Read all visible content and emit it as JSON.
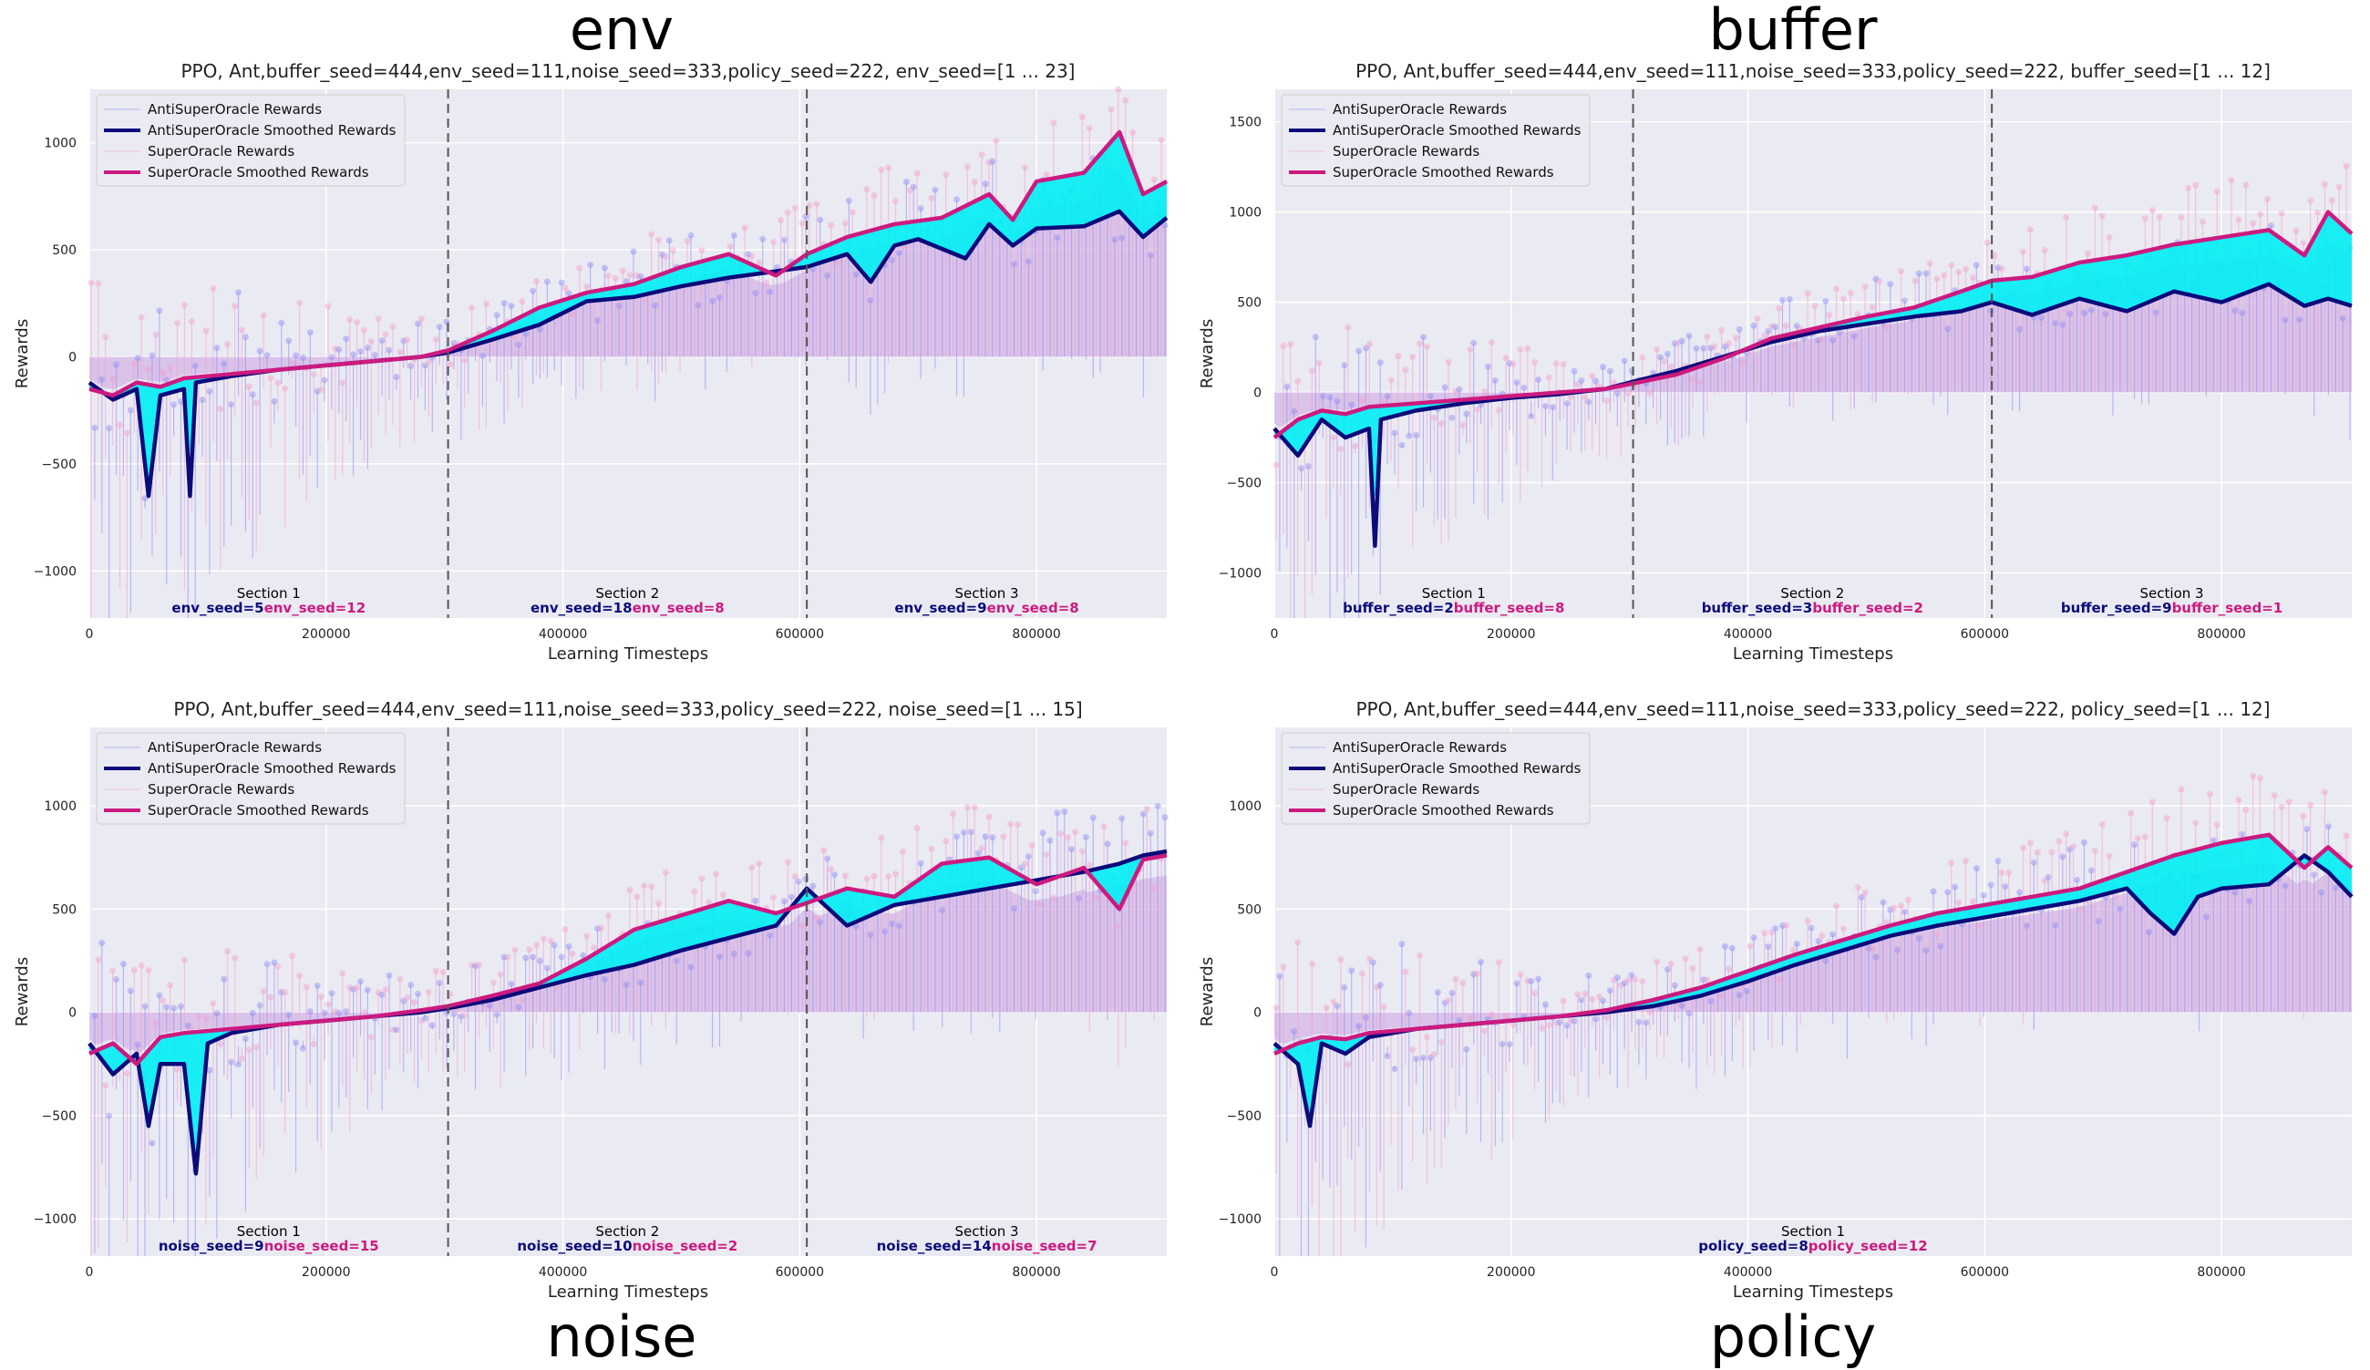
{
  "panel_labels": {
    "top_left": "env",
    "top_right": "buffer",
    "bottom_left": "noise",
    "bottom_right": "policy"
  },
  "colors": {
    "background": "#eaeaf2",
    "grid": "#ffffff",
    "anti_smoothed": "#0b0b7a",
    "super_smoothed": "#cc1a7f",
    "anti_raw": "#8c8cf5",
    "super_raw": "#f5a0c8",
    "fill_between": "#00f0f5",
    "fill_base": "#d2b2e6",
    "section_line": "#555555"
  },
  "chart_data": [
    {
      "type": "line",
      "title": "PPO, Ant,buffer_seed=444,env_seed=111,noise_seed=333,policy_seed=222, env_seed=[1 ... 23]",
      "xlabel": "Learning Timesteps",
      "ylabel": "Rewards",
      "xlim": [
        0,
        910000
      ],
      "ylim": [
        -1220,
        1250
      ],
      "xticks": [
        0,
        200000,
        400000,
        600000,
        800000
      ],
      "xtick_labels": [
        "0",
        "200000",
        "400000",
        "600000",
        "800000"
      ],
      "yticks": [
        -1000,
        -500,
        0,
        500,
        1000
      ],
      "ytick_labels": [
        "−1000",
        "−500",
        "0",
        "500",
        "1000"
      ],
      "legend_position": "top-left",
      "legend": [
        "AntiSuperOracle Rewards",
        "AntiSuperOracle Smoothed Rewards",
        "SuperOracle Rewards",
        "SuperOracle Smoothed Rewards"
      ],
      "section_boundaries": [
        303000,
        606000
      ],
      "sections": [
        {
          "title": "Section 1",
          "anti": "env_seed=5",
          "super": "env_seed=12"
        },
        {
          "title": "Section 2",
          "anti": "env_seed=18",
          "super": "env_seed=8"
        },
        {
          "title": "Section 3",
          "anti": "env_seed=9",
          "super": "env_seed=8"
        }
      ],
      "series": [
        {
          "name": "AntiSuperOracle Smoothed Rewards",
          "x": [
            0,
            20000,
            40000,
            50000,
            60000,
            80000,
            85000,
            90000,
            120000,
            160000,
            200000,
            240000,
            280000,
            303000,
            340000,
            380000,
            420000,
            460000,
            500000,
            540000,
            580000,
            606000,
            640000,
            660000,
            680000,
            700000,
            740000,
            760000,
            780000,
            800000,
            840000,
            870000,
            890000,
            910000
          ],
          "y": [
            -120,
            -200,
            -150,
            -650,
            -180,
            -150,
            -650,
            -120,
            -90,
            -60,
            -40,
            -20,
            0,
            20,
            80,
            150,
            260,
            280,
            330,
            370,
            400,
            420,
            480,
            350,
            520,
            550,
            460,
            620,
            520,
            600,
            610,
            680,
            560,
            650
          ]
        },
        {
          "name": "SuperOracle Smoothed Rewards",
          "x": [
            0,
            20000,
            40000,
            60000,
            80000,
            120000,
            160000,
            200000,
            240000,
            280000,
            303000,
            340000,
            380000,
            420000,
            460000,
            500000,
            540000,
            580000,
            606000,
            640000,
            680000,
            720000,
            760000,
            780000,
            800000,
            840000,
            870000,
            890000,
            910000
          ],
          "y": [
            -150,
            -180,
            -120,
            -140,
            -100,
            -80,
            -60,
            -40,
            -20,
            0,
            30,
            120,
            230,
            300,
            340,
            420,
            480,
            380,
            480,
            560,
            620,
            650,
            760,
            640,
            820,
            860,
            1050,
            760,
            820
          ]
        }
      ]
    },
    {
      "type": "line",
      "title": "PPO, Ant,buffer_seed=444,env_seed=111,noise_seed=333,policy_seed=222, buffer_seed=[1 ... 12]",
      "xlabel": "Learning Timesteps",
      "ylabel": "Rewards",
      "xlim": [
        0,
        910000
      ],
      "ylim": [
        -1250,
        1680
      ],
      "xticks": [
        0,
        200000,
        400000,
        600000,
        800000
      ],
      "xtick_labels": [
        "0",
        "200000",
        "400000",
        "600000",
        "800000"
      ],
      "yticks": [
        -1000,
        -500,
        0,
        500,
        1000,
        1500
      ],
      "ytick_labels": [
        "−1000",
        "−500",
        "0",
        "500",
        "1000",
        "1500"
      ],
      "legend_position": "top-left",
      "legend": [
        "AntiSuperOracle Rewards",
        "AntiSuperOracle Smoothed Rewards",
        "SuperOracle Rewards",
        "SuperOracle Smoothed Rewards"
      ],
      "section_boundaries": [
        303000,
        606000
      ],
      "sections": [
        {
          "title": "Section 1",
          "anti": "buffer_seed=2",
          "super": "buffer_seed=8"
        },
        {
          "title": "Section 2",
          "anti": "buffer_seed=3",
          "super": "buffer_seed=2"
        },
        {
          "title": "Section 3",
          "anti": "buffer_seed=9",
          "super": "buffer_seed=1"
        }
      ],
      "series": [
        {
          "name": "AntiSuperOracle Smoothed Rewards",
          "x": [
            0,
            20000,
            40000,
            60000,
            80000,
            85000,
            90000,
            120000,
            160000,
            200000,
            240000,
            280000,
            303000,
            340000,
            380000,
            420000,
            460000,
            500000,
            540000,
            580000,
            606000,
            640000,
            680000,
            720000,
            760000,
            800000,
            840000,
            870000,
            890000,
            910000
          ],
          "y": [
            -200,
            -350,
            -150,
            -250,
            -200,
            -850,
            -150,
            -100,
            -60,
            -30,
            -10,
            20,
            60,
            120,
            200,
            280,
            340,
            380,
            420,
            450,
            500,
            430,
            520,
            450,
            560,
            500,
            600,
            480,
            520,
            480
          ]
        },
        {
          "name": "SuperOracle Smoothed Rewards",
          "x": [
            0,
            20000,
            40000,
            60000,
            80000,
            120000,
            160000,
            200000,
            240000,
            280000,
            303000,
            340000,
            380000,
            420000,
            460000,
            500000,
            540000,
            580000,
            606000,
            640000,
            680000,
            720000,
            760000,
            800000,
            840000,
            870000,
            890000,
            910000
          ],
          "y": [
            -250,
            -150,
            -100,
            -120,
            -80,
            -60,
            -40,
            -20,
            0,
            20,
            50,
            100,
            190,
            300,
            360,
            420,
            470,
            560,
            620,
            640,
            720,
            760,
            820,
            860,
            900,
            760,
            1000,
            880
          ]
        }
      ]
    },
    {
      "type": "line",
      "title": "PPO, Ant,buffer_seed=444,env_seed=111,noise_seed=333,policy_seed=222, noise_seed=[1 ... 15]",
      "xlabel": "Learning Timesteps",
      "ylabel": "Rewards",
      "xlim": [
        0,
        910000
      ],
      "ylim": [
        -1180,
        1380
      ],
      "xticks": [
        0,
        200000,
        400000,
        600000,
        800000
      ],
      "xtick_labels": [
        "0",
        "200000",
        "400000",
        "600000",
        "800000"
      ],
      "yticks": [
        -1000,
        -500,
        0,
        500,
        1000
      ],
      "ytick_labels": [
        "−1000",
        "−500",
        "0",
        "500",
        "1000"
      ],
      "legend_position": "top-left",
      "legend": [
        "AntiSuperOracle Rewards",
        "AntiSuperOracle Smoothed Rewards",
        "SuperOracle Rewards",
        "SuperOracle Smoothed Rewards"
      ],
      "section_boundaries": [
        303000,
        606000
      ],
      "sections": [
        {
          "title": "Section 1",
          "anti": "noise_seed=9",
          "super": "noise_seed=15"
        },
        {
          "title": "Section 2",
          "anti": "noise_seed=10",
          "super": "noise_seed=2"
        },
        {
          "title": "Section 3",
          "anti": "noise_seed=14",
          "super": "noise_seed=7"
        }
      ],
      "series": [
        {
          "name": "AntiSuperOracle Smoothed Rewards",
          "x": [
            0,
            20000,
            40000,
            50000,
            60000,
            80000,
            90000,
            100000,
            120000,
            160000,
            200000,
            240000,
            280000,
            303000,
            340000,
            380000,
            420000,
            460000,
            500000,
            540000,
            580000,
            606000,
            640000,
            680000,
            720000,
            760000,
            800000,
            840000,
            870000,
            890000,
            910000
          ],
          "y": [
            -150,
            -300,
            -200,
            -550,
            -250,
            -250,
            -780,
            -150,
            -100,
            -60,
            -40,
            -20,
            0,
            20,
            60,
            120,
            180,
            230,
            300,
            360,
            420,
            600,
            420,
            520,
            560,
            600,
            640,
            680,
            720,
            760,
            780
          ]
        },
        {
          "name": "SuperOracle Smoothed Rewards",
          "x": [
            0,
            20000,
            40000,
            60000,
            80000,
            120000,
            160000,
            200000,
            240000,
            280000,
            303000,
            340000,
            380000,
            420000,
            460000,
            500000,
            540000,
            580000,
            606000,
            640000,
            680000,
            720000,
            760000,
            800000,
            840000,
            870000,
            890000,
            910000
          ],
          "y": [
            -200,
            -150,
            -250,
            -120,
            -100,
            -80,
            -60,
            -40,
            -20,
            10,
            30,
            80,
            140,
            260,
            400,
            470,
            540,
            480,
            530,
            600,
            560,
            720,
            750,
            620,
            700,
            500,
            740,
            760
          ]
        }
      ]
    },
    {
      "type": "line",
      "title": "PPO, Ant,buffer_seed=444,env_seed=111,noise_seed=333,policy_seed=222, policy_seed=[1 ... 12]",
      "xlabel": "Learning Timesteps",
      "ylabel": "Rewards",
      "xlim": [
        0,
        910000
      ],
      "ylim": [
        -1180,
        1380
      ],
      "xticks": [
        0,
        200000,
        400000,
        600000,
        800000
      ],
      "xtick_labels": [
        "0",
        "200000",
        "400000",
        "600000",
        "800000"
      ],
      "yticks": [
        -1000,
        -500,
        0,
        500,
        1000
      ],
      "ytick_labels": [
        "−1000",
        "−500",
        "0",
        "500",
        "1000"
      ],
      "legend_position": "top-left",
      "legend": [
        "AntiSuperOracle Rewards",
        "AntiSuperOracle Smoothed Rewards",
        "SuperOracle Rewards",
        "SuperOracle Smoothed Rewards"
      ],
      "section_boundaries": [],
      "sections": [
        {
          "title": "Section 1",
          "anti": "policy_seed=8",
          "super": "policy_seed=12"
        }
      ],
      "series": [
        {
          "name": "AntiSuperOracle Smoothed Rewards",
          "x": [
            0,
            20000,
            30000,
            40000,
            60000,
            80000,
            120000,
            160000,
            200000,
            240000,
            280000,
            320000,
            360000,
            400000,
            440000,
            480000,
            520000,
            560000,
            600000,
            640000,
            680000,
            720000,
            740000,
            760000,
            780000,
            800000,
            840000,
            870000,
            890000,
            910000
          ],
          "y": [
            -150,
            -250,
            -550,
            -150,
            -200,
            -120,
            -80,
            -60,
            -40,
            -20,
            0,
            30,
            80,
            150,
            230,
            300,
            370,
            420,
            460,
            500,
            540,
            600,
            480,
            380,
            560,
            600,
            620,
            760,
            680,
            560
          ]
        },
        {
          "name": "SuperOracle Smoothed Rewards",
          "x": [
            0,
            20000,
            40000,
            60000,
            80000,
            120000,
            160000,
            200000,
            240000,
            280000,
            320000,
            360000,
            400000,
            440000,
            480000,
            520000,
            560000,
            600000,
            640000,
            680000,
            720000,
            760000,
            800000,
            840000,
            870000,
            890000,
            910000
          ],
          "y": [
            -200,
            -150,
            -120,
            -130,
            -100,
            -80,
            -60,
            -40,
            -20,
            10,
            60,
            120,
            200,
            280,
            350,
            420,
            480,
            520,
            560,
            600,
            680,
            760,
            820,
            860,
            700,
            800,
            700
          ]
        }
      ]
    }
  ]
}
